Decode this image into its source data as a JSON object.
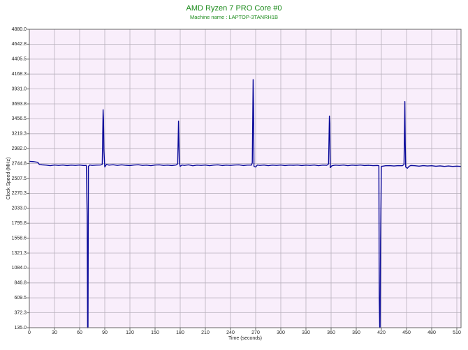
{
  "chart_data": {
    "type": "line",
    "title": "AMD Ryzen 7 PRO Core #0",
    "subtitle": "Machine name : LAPTOP-3TANRH1B",
    "x_label": "Time (seconds)",
    "y_label": "Clock Speed (MHz)",
    "xlim": [
      0,
      515
    ],
    "xticks": [
      0,
      30,
      60,
      90,
      120,
      150,
      180,
      210,
      240,
      270,
      300,
      330,
      360,
      390,
      420,
      450,
      480,
      510
    ],
    "ylim": [
      135,
      4880
    ],
    "yticks": [
      {
        "value": 135,
        "label": "135.0"
      },
      372.3,
      609.5,
      846.8,
      {
        "value": 1084,
        "label": "1084.0"
      },
      1321.3,
      1558.6,
      1795.8,
      {
        "value": 2033,
        "label": "2033.0"
      },
      2270.3,
      2507.5,
      2744.8,
      {
        "value": 2982,
        "label": "2982.0"
      },
      3219.3,
      3456.5,
      3693.8,
      {
        "value": 3931,
        "label": "3931.0"
      },
      4168.3,
      4405.5,
      4642.8,
      {
        "value": 4880,
        "label": "4880.0"
      }
    ],
    "grid": true,
    "series": [
      {
        "name": "Core #0",
        "color": "#0a0a9a",
        "x": [
          0,
          5,
          10,
          12,
          15,
          20,
          25,
          30,
          35,
          40,
          45,
          50,
          55,
          60,
          65,
          68,
          69,
          69.5,
          70,
          70.5,
          72,
          75,
          80,
          85,
          87,
          88,
          88.5,
          89,
          90,
          92,
          95,
          100,
          105,
          110,
          115,
          120,
          125,
          130,
          135,
          140,
          145,
          150,
          155,
          160,
          165,
          170,
          175,
          177,
          178,
          179,
          180,
          182,
          185,
          190,
          195,
          200,
          205,
          210,
          215,
          220,
          225,
          230,
          235,
          240,
          245,
          250,
          255,
          260,
          265,
          266,
          267,
          267.5,
          268,
          270,
          272,
          275,
          280,
          285,
          290,
          295,
          300,
          305,
          310,
          315,
          320,
          325,
          330,
          335,
          340,
          345,
          350,
          355,
          357,
          358,
          358.5,
          359,
          361,
          365,
          370,
          375,
          380,
          385,
          390,
          395,
          400,
          405,
          410,
          415,
          417,
          417.5,
          418,
          418.5,
          419,
          420,
          425,
          430,
          435,
          440,
          445,
          447,
          448,
          448.5,
          449,
          451,
          453,
          455,
          460,
          465,
          470,
          475,
          480,
          485,
          490,
          495,
          500,
          505,
          510,
          515
        ],
        "values": [
          2780,
          2775,
          2765,
          2730,
          2725,
          2720,
          2712,
          2722,
          2716,
          2722,
          2714,
          2720,
          2716,
          2722,
          2714,
          2716,
          1900,
          135,
          135,
          2700,
          2722,
          2716,
          2720,
          2722,
          2732,
          3600,
          3450,
          2950,
          2690,
          2732,
          2720,
          2726,
          2716,
          2724,
          2718,
          2714,
          2722,
          2726,
          2716,
          2720,
          2712,
          2722,
          2724,
          2716,
          2720,
          2714,
          2722,
          2740,
          3420,
          2760,
          2700,
          2722,
          2716,
          2724,
          2710,
          2720,
          2716,
          2722,
          2712,
          2720,
          2724,
          2714,
          2720,
          2716,
          2722,
          2724,
          2714,
          2720,
          2720,
          2760,
          4080,
          3620,
          2700,
          2690,
          2722,
          2716,
          2722,
          2712,
          2720,
          2716,
          2722,
          2714,
          2720,
          2718,
          2722,
          2714,
          2720,
          2716,
          2722,
          2712,
          2720,
          2718,
          2740,
          3500,
          3380,
          2680,
          2710,
          2720,
          2716,
          2722,
          2712,
          2720,
          2716,
          2722,
          2714,
          2718,
          2712,
          2714,
          2710,
          600,
          135,
          135,
          1500,
          2700,
          2710,
          2712,
          2706,
          2712,
          2710,
          2730,
          3730,
          3050,
          2690,
          2670,
          2700,
          2714,
          2710,
          2704,
          2712,
          2706,
          2710,
          2702,
          2708,
          2700,
          2706,
          2700,
          2704,
          2700
        ]
      }
    ]
  }
}
